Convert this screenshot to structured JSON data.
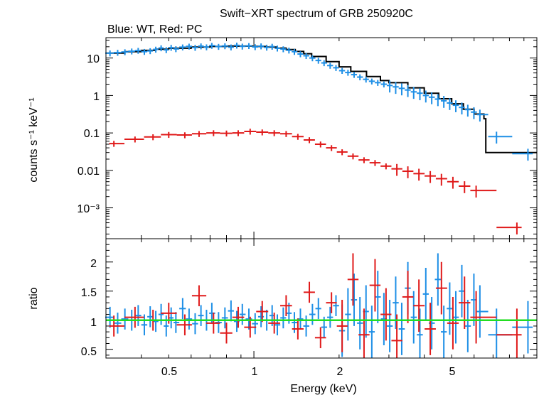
{
  "chart_data": [
    {
      "type": "scatter",
      "title": "Swift−XRT spectrum of GRB 250920C",
      "subtitle": "Blue: WT, Red: PC",
      "xlabel": "",
      "ylabel": "counts s⁻¹ keV⁻¹",
      "xscale": "log",
      "yscale": "log",
      "xlim": [
        0.3,
        10
      ],
      "ylim": [
        0.00015,
        35
      ],
      "ytick_labels": [
        "10",
        "1",
        "0.1",
        "0.01",
        "10⁻³"
      ],
      "colors": {
        "wt": "#1e8fe6",
        "pc": "#e01a1a",
        "model": "#000000"
      },
      "series": [
        {
          "color_key": "wt",
          "points": [
            [
              0.31,
              13.5
            ],
            [
              0.33,
              14.0
            ],
            [
              0.35,
              14.5
            ],
            [
              0.37,
              15.2
            ],
            [
              0.39,
              15.8
            ],
            [
              0.41,
              14.8
            ],
            [
              0.43,
              15.5
            ],
            [
              0.45,
              17.0
            ],
            [
              0.47,
              18.5
            ],
            [
              0.49,
              16.5
            ],
            [
              0.51,
              19.0
            ],
            [
              0.53,
              17.5
            ],
            [
              0.56,
              19.5
            ],
            [
              0.59,
              20.5
            ],
            [
              0.62,
              19.0
            ],
            [
              0.65,
              20.8
            ],
            [
              0.68,
              19.6
            ],
            [
              0.71,
              21.5
            ],
            [
              0.75,
              20.2
            ],
            [
              0.79,
              21.0
            ],
            [
              0.83,
              19.5
            ],
            [
              0.87,
              21.8
            ],
            [
              0.91,
              20.5
            ],
            [
              0.96,
              21.2
            ],
            [
              1.01,
              19.8
            ],
            [
              1.06,
              20.8
            ],
            [
              1.11,
              19.2
            ],
            [
              1.16,
              20.3
            ],
            [
              1.21,
              18.2
            ],
            [
              1.27,
              17.4
            ],
            [
              1.33,
              16.1
            ],
            [
              1.39,
              14.8
            ],
            [
              1.46,
              12.8
            ],
            [
              1.53,
              11.5
            ],
            [
              1.61,
              10.0
            ],
            [
              1.69,
              8.6
            ],
            [
              1.77,
              7.4
            ],
            [
              1.86,
              6.3
            ],
            [
              1.95,
              5.5
            ],
            [
              2.05,
              4.6
            ],
            [
              2.15,
              4.1
            ],
            [
              2.26,
              3.6
            ],
            [
              2.37,
              3.1
            ],
            [
              2.49,
              2.7
            ],
            [
              2.61,
              2.4
            ],
            [
              2.74,
              2.2
            ],
            [
              2.88,
              2.0
            ],
            [
              3.02,
              1.85
            ],
            [
              3.17,
              1.7
            ],
            [
              3.33,
              1.55
            ],
            [
              3.5,
              1.4
            ],
            [
              3.67,
              1.25
            ],
            [
              3.86,
              1.15
            ],
            [
              4.05,
              1.0
            ],
            [
              4.25,
              0.9
            ],
            [
              4.47,
              0.8
            ],
            [
              4.69,
              0.72
            ],
            [
              4.92,
              0.63
            ],
            [
              5.17,
              0.55
            ],
            [
              5.43,
              0.48
            ],
            [
              5.7,
              0.42
            ],
            [
              5.99,
              0.36
            ],
            [
              6.29,
              0.31
            ],
            [
              7.2,
              0.08
            ],
            [
              9.3,
              0.028
            ]
          ]
        },
        {
          "color_key": "pc",
          "points": [
            [
              0.32,
              0.052
            ],
            [
              0.38,
              0.068
            ],
            [
              0.44,
              0.078
            ],
            [
              0.5,
              0.09
            ],
            [
              0.57,
              0.088
            ],
            [
              0.64,
              0.095
            ],
            [
              0.72,
              0.1
            ],
            [
              0.8,
              0.098
            ],
            [
              0.88,
              0.1
            ],
            [
              0.97,
              0.11
            ],
            [
              1.07,
              0.105
            ],
            [
              1.18,
              0.1
            ],
            [
              1.3,
              0.095
            ],
            [
              1.43,
              0.08
            ],
            [
              1.57,
              0.065
            ],
            [
              1.72,
              0.05
            ],
            [
              1.88,
              0.04
            ],
            [
              2.05,
              0.031
            ],
            [
              2.24,
              0.024
            ],
            [
              2.45,
              0.019
            ],
            [
              2.68,
              0.016
            ],
            [
              2.93,
              0.013
            ],
            [
              3.2,
              0.011
            ],
            [
              3.5,
              0.0095
            ],
            [
              3.83,
              0.0082
            ],
            [
              4.2,
              0.0071
            ],
            [
              4.6,
              0.006
            ],
            [
              5.05,
              0.005
            ],
            [
              5.55,
              0.0038
            ],
            [
              6.1,
              0.0029
            ],
            [
              8.5,
              0.0003
            ]
          ]
        }
      ],
      "model": {
        "color_key": "model",
        "points": [
          [
            0.3,
            13.5
          ],
          [
            0.35,
            14.8
          ],
          [
            0.4,
            16.0
          ],
          [
            0.45,
            17.2
          ],
          [
            0.5,
            18.3
          ],
          [
            0.6,
            19.6
          ],
          [
            0.7,
            20.4
          ],
          [
            0.8,
            20.8
          ],
          [
            0.9,
            20.8
          ],
          [
            1.0,
            20.4
          ],
          [
            1.1,
            19.6
          ],
          [
            1.2,
            18.4
          ],
          [
            1.3,
            16.8
          ],
          [
            1.4,
            15.0
          ],
          [
            1.5,
            13.0
          ],
          [
            1.6,
            11.0
          ],
          [
            1.8,
            8.0
          ],
          [
            2.0,
            5.8
          ],
          [
            2.2,
            4.4
          ],
          [
            2.5,
            3.2
          ],
          [
            2.8,
            2.5
          ],
          [
            3.0,
            2.2
          ],
          [
            3.5,
            1.6
          ],
          [
            4.0,
            1.15
          ],
          [
            4.5,
            0.82
          ],
          [
            5.0,
            0.6
          ],
          [
            5.5,
            0.43
          ],
          [
            6.0,
            0.32
          ],
          [
            6.5,
            0.24
          ],
          [
            6.6,
            0.03
          ],
          [
            10,
            0.03
          ]
        ]
      }
    },
    {
      "type": "scatter",
      "title": "",
      "xlabel": "Energy (keV)",
      "ylabel": "ratio",
      "xscale": "log",
      "yscale": "linear",
      "xlim": [
        0.3,
        10
      ],
      "ylim": [
        0.35,
        2.4
      ],
      "xtick_labels": [
        "0.5",
        "1",
        "2",
        "5"
      ],
      "ytick_labels": [
        "0.5",
        "1",
        "1.5",
        "2"
      ],
      "reference_line": 1,
      "colors": {
        "wt": "#1e8fe6",
        "pc": "#e01a1a",
        "reference": "#22dd22"
      },
      "series": [
        {
          "color_key": "wt",
          "points": [
            [
              0.31,
              1.05
            ],
            [
              0.33,
              0.95
            ],
            [
              0.35,
              1.02
            ],
            [
              0.37,
              1.0
            ],
            [
              0.39,
              1.08
            ],
            [
              0.41,
              0.92
            ],
            [
              0.43,
              1.06
            ],
            [
              0.45,
              0.98
            ],
            [
              0.47,
              1.1
            ],
            [
              0.49,
              0.9
            ],
            [
              0.51,
              1.04
            ],
            [
              0.53,
              0.96
            ],
            [
              0.56,
              1.2
            ],
            [
              0.59,
              1.02
            ],
            [
              0.62,
              0.94
            ],
            [
              0.65,
              1.08
            ],
            [
              0.68,
              1.0
            ],
            [
              0.71,
              1.12
            ],
            [
              0.75,
              0.96
            ],
            [
              0.79,
              1.04
            ],
            [
              0.83,
              1.16
            ],
            [
              0.87,
              0.98
            ],
            [
              0.91,
              1.1
            ],
            [
              0.96,
              1.02
            ],
            [
              1.01,
              0.94
            ],
            [
              1.06,
              1.06
            ],
            [
              1.11,
              1.0
            ],
            [
              1.16,
              1.08
            ],
            [
              1.21,
              0.92
            ],
            [
              1.27,
              1.04
            ],
            [
              1.33,
              1.12
            ],
            [
              1.39,
              0.96
            ],
            [
              1.46,
              1.02
            ],
            [
              1.53,
              0.9
            ],
            [
              1.61,
              1.1
            ],
            [
              1.69,
              1.2
            ],
            [
              1.77,
              0.88
            ],
            [
              1.86,
              1.05
            ],
            [
              1.95,
              1.25
            ],
            [
              2.05,
              0.82
            ],
            [
              2.15,
              1.1
            ],
            [
              2.26,
              1.35
            ],
            [
              2.37,
              0.95
            ],
            [
              2.49,
              1.15
            ],
            [
              2.61,
              0.8
            ],
            [
              2.74,
              1.4
            ],
            [
              2.88,
              1.02
            ],
            [
              3.02,
              0.9
            ],
            [
              3.17,
              1.3
            ],
            [
              3.33,
              0.85
            ],
            [
              3.5,
              1.55
            ],
            [
              3.67,
              1.05
            ],
            [
              3.86,
              0.75
            ],
            [
              4.05,
              1.45
            ],
            [
              4.25,
              0.95
            ],
            [
              4.47,
              1.7
            ],
            [
              4.69,
              0.8
            ],
            [
              4.92,
              1.2
            ],
            [
              5.17,
              1.05
            ],
            [
              5.43,
              1.5
            ],
            [
              5.7,
              0.9
            ],
            [
              5.99,
              1.35
            ],
            [
              6.29,
              1.15
            ],
            [
              7.2,
              0.75
            ],
            [
              9.3,
              0.88
            ]
          ]
        },
        {
          "color_key": "pc",
          "points": [
            [
              0.32,
              0.9
            ],
            [
              0.38,
              1.05
            ],
            [
              0.44,
              1.0
            ],
            [
              0.5,
              1.12
            ],
            [
              0.57,
              0.92
            ],
            [
              0.64,
              1.42
            ],
            [
              0.72,
              0.95
            ],
            [
              0.8,
              0.78
            ],
            [
              0.88,
              1.05
            ],
            [
              0.97,
              0.88
            ],
            [
              1.07,
              1.15
            ],
            [
              1.18,
              0.95
            ],
            [
              1.3,
              1.25
            ],
            [
              1.43,
              0.85
            ],
            [
              1.57,
              1.48
            ],
            [
              1.72,
              0.7
            ],
            [
              1.88,
              1.3
            ],
            [
              2.05,
              0.9
            ],
            [
              2.24,
              1.7
            ],
            [
              2.45,
              0.75
            ],
            [
              2.68,
              1.6
            ],
            [
              2.93,
              1.1
            ],
            [
              3.2,
              0.65
            ],
            [
              3.5,
              1.4
            ],
            [
              3.83,
              1.25
            ],
            [
              4.2,
              0.85
            ],
            [
              4.6,
              1.55
            ],
            [
              5.05,
              0.95
            ],
            [
              5.55,
              1.3
            ],
            [
              6.1,
              1.05
            ],
            [
              8.5,
              0.75
            ]
          ]
        }
      ]
    }
  ]
}
